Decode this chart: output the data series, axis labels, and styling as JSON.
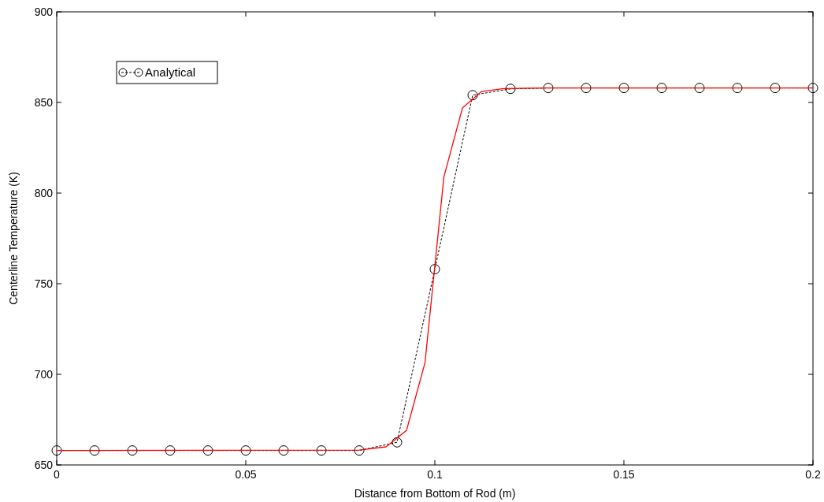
{
  "chart_data": {
    "type": "line",
    "xlabel": "Distance from Bottom of Rod (m)",
    "ylabel": "Centerline Temperature (K)",
    "xlim": [
      0,
      0.2
    ],
    "ylim": [
      650,
      900
    ],
    "xticks": [
      0,
      0.05,
      0.1,
      0.15,
      0.2
    ],
    "yticks": [
      650,
      700,
      750,
      800,
      850,
      900
    ],
    "grid": false,
    "legend": "top left",
    "series": [
      {
        "name": "Analytical",
        "color": "#000000",
        "marker": "circle",
        "line_style": "dashed",
        "x": [
          0,
          0.01,
          0.02,
          0.03,
          0.04,
          0.05,
          0.06,
          0.07,
          0.08,
          0.09,
          0.1,
          0.11,
          0.12,
          0.13,
          0.14,
          0.15,
          0.16,
          0.17,
          0.18,
          0.19,
          0.2
        ],
        "values": [
          658,
          658,
          658,
          658,
          658,
          658,
          658,
          658,
          658,
          662.5,
          758,
          854,
          857.5,
          858,
          858,
          858,
          858,
          858,
          858,
          858,
          858
        ]
      },
      {
        "color": "#ff0000",
        "marker": "none",
        "line_style": "solid",
        "x": [
          0,
          0.08,
          0.0871,
          0.0925,
          0.0974,
          0.1024,
          0.1073,
          0.1123,
          0.1183,
          0.13,
          0.2
        ],
        "values": [
          658,
          658.2,
          660,
          669,
          706.5,
          809,
          847,
          856,
          857.7,
          858,
          858
        ]
      }
    ]
  }
}
